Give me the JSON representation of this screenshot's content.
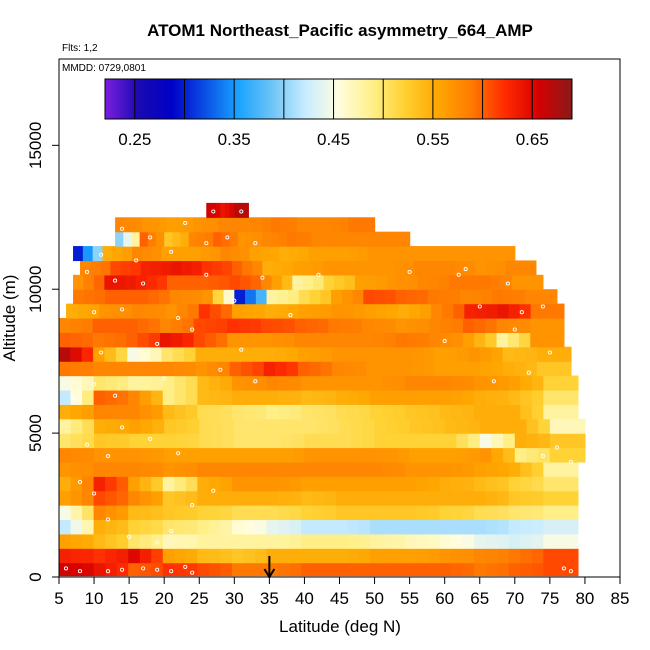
{
  "chart_data": {
    "type": "heatmap",
    "title": "ATOM1 Northeast_Pacific asymmetry_664_AMP",
    "flights_label": "Flts: 1,2",
    "dates_label": "MMDD: 0729,0801",
    "xlabel": "Latitude (deg N)",
    "ylabel": "Altitude (m)",
    "xlim": [
      5,
      85
    ],
    "ylim": [
      0,
      18000
    ],
    "x_ticks": [
      5,
      10,
      15,
      20,
      25,
      30,
      35,
      40,
      45,
      50,
      55,
      60,
      65,
      70,
      75,
      80,
      85
    ],
    "y_ticks": [
      0,
      5000,
      10000,
      15000
    ],
    "colorbar": {
      "range": [
        0.22,
        0.69
      ],
      "tick_values": [
        0.25,
        0.35,
        0.45,
        0.55,
        0.65
      ],
      "tick_labels": [
        "0.25",
        "0.35",
        "0.45",
        "0.55",
        "0.65"
      ],
      "colors": [
        "#7a1fe0",
        "#1a0ab0",
        "#0000c8",
        "#0a4fe6",
        "#1aa3ff",
        "#6cc4f5",
        "#c8ecff",
        "#fffde0",
        "#fff08a",
        "#ffd030",
        "#ffa600",
        "#ff7a00",
        "#ff2a00",
        "#d60000",
        "#8a1a1a"
      ]
    },
    "marker": {
      "latitude": 35,
      "symbol": "arrow"
    },
    "rows": [
      {
        "alt": 300,
        "lat_min": 5,
        "lat_max": 79,
        "values": [
          0.66,
          0.64,
          0.6,
          0.62,
          0.61,
          0.59,
          0.59,
          0.6,
          0.6,
          0.6,
          0.6,
          0.6,
          0.59,
          0.6,
          0.61
        ]
      },
      {
        "alt": 750,
        "lat_min": 5,
        "lat_max": 79,
        "values": [
          0.63,
          0.62,
          0.65,
          0.56,
          0.54,
          0.53,
          0.55,
          0.55,
          0.55,
          0.56,
          0.56,
          0.57,
          0.58,
          0.59,
          0.61
        ]
      },
      {
        "alt": 1250,
        "lat_min": 5,
        "lat_max": 79,
        "values": [
          0.56,
          0.54,
          0.5,
          0.47,
          0.48,
          0.48,
          0.48,
          0.49,
          0.49,
          0.48,
          0.47,
          0.46,
          0.44,
          0.43,
          0.45
        ]
      },
      {
        "alt": 1750,
        "lat_min": 5,
        "lat_max": 79,
        "values": [
          0.42,
          0.55,
          0.52,
          0.5,
          0.49,
          0.46,
          0.44,
          0.42,
          0.42,
          0.41,
          0.41,
          0.41,
          0.41,
          0.42,
          0.43
        ]
      },
      {
        "alt": 2250,
        "lat_min": 5,
        "lat_max": 79,
        "values": [
          0.45,
          0.58,
          0.54,
          0.53,
          0.52,
          0.51,
          0.51,
          0.52,
          0.53,
          0.53,
          0.53,
          0.52,
          0.51,
          0.5,
          0.49
        ]
      },
      {
        "alt": 2750,
        "lat_min": 5,
        "lat_max": 79,
        "values": [
          0.56,
          0.61,
          0.58,
          0.53,
          0.55,
          0.55,
          0.55,
          0.54,
          0.55,
          0.55,
          0.55,
          0.55,
          0.55,
          0.53,
          0.52
        ]
      },
      {
        "alt": 3250,
        "lat_min": 5,
        "lat_max": 79,
        "values": [
          0.55,
          0.63,
          0.56,
          0.48,
          0.55,
          0.57,
          0.57,
          0.56,
          0.56,
          0.56,
          0.56,
          0.55,
          0.54,
          0.52,
          0.5
        ]
      },
      {
        "alt": 3750,
        "lat_min": 5,
        "lat_max": 79,
        "values": [
          0.57,
          0.58,
          0.58,
          0.57,
          0.58,
          0.58,
          0.58,
          0.58,
          0.58,
          0.58,
          0.57,
          0.57,
          0.56,
          0.55,
          0.48
        ]
      },
      {
        "alt": 4250,
        "lat_min": 5,
        "lat_max": 80,
        "values": [
          0.58,
          0.57,
          0.57,
          0.56,
          0.56,
          0.56,
          0.56,
          0.57,
          0.57,
          0.57,
          0.56,
          0.56,
          0.57,
          0.49,
          0.52
        ]
      },
      {
        "alt": 4750,
        "lat_min": 5,
        "lat_max": 80,
        "values": [
          0.5,
          0.53,
          0.52,
          0.52,
          0.51,
          0.5,
          0.5,
          0.51,
          0.51,
          0.52,
          0.52,
          0.52,
          0.45,
          0.55,
          0.53
        ]
      },
      {
        "alt": 5250,
        "lat_min": 5,
        "lat_max": 80,
        "values": [
          0.48,
          0.55,
          0.56,
          0.53,
          0.51,
          0.5,
          0.5,
          0.5,
          0.51,
          0.52,
          0.53,
          0.54,
          0.55,
          0.55,
          0.47
        ]
      },
      {
        "alt": 5750,
        "lat_min": 5,
        "lat_max": 79,
        "values": [
          0.55,
          0.58,
          0.58,
          0.54,
          0.51,
          0.5,
          0.49,
          0.5,
          0.51,
          0.52,
          0.53,
          0.54,
          0.55,
          0.55,
          0.48
        ]
      },
      {
        "alt": 6250,
        "lat_min": 5,
        "lat_max": 79,
        "values": [
          0.42,
          0.6,
          0.58,
          0.49,
          0.54,
          0.55,
          0.55,
          0.54,
          0.55,
          0.56,
          0.56,
          0.56,
          0.55,
          0.54,
          0.5
        ]
      },
      {
        "alt": 6750,
        "lat_min": 5,
        "lat_max": 79,
        "values": [
          0.45,
          0.5,
          0.48,
          0.49,
          0.54,
          0.57,
          0.58,
          0.57,
          0.57,
          0.57,
          0.58,
          0.58,
          0.57,
          0.56,
          0.52
        ]
      },
      {
        "alt": 7250,
        "lat_min": 5,
        "lat_max": 78,
        "values": [
          0.59,
          0.58,
          0.58,
          0.58,
          0.57,
          0.6,
          0.63,
          0.6,
          0.58,
          0.57,
          0.57,
          0.56,
          0.56,
          0.55,
          0.53
        ]
      },
      {
        "alt": 7750,
        "lat_min": 5,
        "lat_max": 78,
        "values": [
          0.67,
          0.56,
          0.45,
          0.5,
          0.55,
          0.55,
          0.55,
          0.56,
          0.57,
          0.57,
          0.57,
          0.56,
          0.57,
          0.54,
          0.55
        ]
      },
      {
        "alt": 8250,
        "lat_min": 5,
        "lat_max": 77,
        "values": [
          0.6,
          0.59,
          0.6,
          0.64,
          0.61,
          0.57,
          0.57,
          0.58,
          0.58,
          0.58,
          0.59,
          0.58,
          0.56,
          0.48,
          0.57
        ]
      },
      {
        "alt": 8750,
        "lat_min": 5,
        "lat_max": 77,
        "values": [
          0.58,
          0.6,
          0.6,
          0.58,
          0.61,
          0.62,
          0.61,
          0.6,
          0.59,
          0.58,
          0.57,
          0.58,
          0.6,
          0.58,
          0.57
        ]
      },
      {
        "alt": 9250,
        "lat_min": 6,
        "lat_max": 77,
        "values": [
          0.55,
          0.57,
          0.58,
          0.57,
          0.62,
          0.56,
          0.55,
          0.56,
          0.57,
          0.56,
          0.55,
          0.58,
          0.63,
          0.64,
          0.59
        ]
      },
      {
        "alt": 9750,
        "lat_min": 7,
        "lat_max": 76,
        "values": [
          0.59,
          0.6,
          0.6,
          0.58,
          0.57,
          0.3,
          0.48,
          0.51,
          0.56,
          0.61,
          0.6,
          0.59,
          0.58,
          0.59,
          0.58
        ]
      },
      {
        "alt": 10250,
        "lat_min": 7,
        "lat_max": 74,
        "values": [
          0.57,
          0.64,
          0.63,
          0.6,
          0.6,
          0.61,
          0.58,
          0.48,
          0.52,
          0.56,
          0.57,
          0.58,
          0.59,
          0.59,
          0.57
        ]
      },
      {
        "alt": 10750,
        "lat_min": 8,
        "lat_max": 73,
        "values": [
          0.58,
          0.61,
          0.63,
          0.64,
          0.62,
          0.6,
          0.55,
          0.56,
          0.57,
          0.57,
          0.57,
          0.58,
          0.58,
          0.57,
          0.58
        ]
      },
      {
        "alt": 11250,
        "lat_min": 7,
        "lat_max": 70,
        "values": [
          0.3,
          0.55,
          0.58,
          0.56,
          0.56,
          0.58,
          0.56,
          0.55,
          0.56,
          0.56,
          0.57,
          0.57,
          0.57,
          0.57,
          0.57
        ]
      },
      {
        "alt": 11750,
        "lat_min": 13,
        "lat_max": 55,
        "values": [
          0.4,
          0.6,
          0.53,
          0.58,
          0.6,
          0.57,
          0.58,
          0.59,
          0.58,
          0.58,
          0.58,
          0.58
        ]
      },
      {
        "alt": 12250,
        "lat_min": 13,
        "lat_max": 50,
        "values": [
          0.58,
          0.57,
          0.56,
          0.57,
          0.58,
          0.58,
          0.59,
          0.58,
          0.58,
          0.59
        ]
      },
      {
        "alt": 12750,
        "lat_min": 26,
        "lat_max": 32,
        "values": [
          0.66,
          0.64,
          0.67
        ]
      }
    ],
    "sample_points": [
      [
        6,
        300
      ],
      [
        8,
        200
      ],
      [
        12,
        200
      ],
      [
        14,
        250
      ],
      [
        17,
        300
      ],
      [
        19,
        250
      ],
      [
        21,
        200
      ],
      [
        23,
        350
      ],
      [
        24,
        150
      ],
      [
        77,
        300
      ],
      [
        78,
        200
      ],
      [
        8,
        3300
      ],
      [
        10,
        2900
      ],
      [
        12,
        2000
      ],
      [
        15,
        1400
      ],
      [
        19,
        1200
      ],
      [
        21,
        1600
      ],
      [
        24,
        2500
      ],
      [
        27,
        3000
      ],
      [
        9,
        4600
      ],
      [
        12,
        4200
      ],
      [
        14,
        5200
      ],
      [
        18,
        4800
      ],
      [
        22,
        4300
      ],
      [
        74,
        4200
      ],
      [
        76,
        4500
      ],
      [
        78,
        4000
      ],
      [
        7,
        6200
      ],
      [
        10,
        6700
      ],
      [
        13,
        6300
      ],
      [
        20,
        6900
      ],
      [
        28,
        7200
      ],
      [
        33,
        6800
      ],
      [
        67,
        6800
      ],
      [
        72,
        7100
      ],
      [
        11,
        7800
      ],
      [
        19,
        8100
      ],
      [
        24,
        8600
      ],
      [
        31,
        7900
      ],
      [
        60,
        8200
      ],
      [
        70,
        8600
      ],
      [
        75,
        7800
      ],
      [
        10,
        9200
      ],
      [
        14,
        9300
      ],
      [
        22,
        9000
      ],
      [
        30,
        9600
      ],
      [
        38,
        9100
      ],
      [
        65,
        9400
      ],
      [
        71,
        9200
      ],
      [
        74,
        9400
      ],
      [
        9,
        10600
      ],
      [
        13,
        10300
      ],
      [
        17,
        10200
      ],
      [
        26,
        10500
      ],
      [
        34,
        10400
      ],
      [
        42,
        10500
      ],
      [
        62,
        10500
      ],
      [
        69,
        10200
      ],
      [
        11,
        11200
      ],
      [
        16,
        11000
      ],
      [
        21,
        11300
      ],
      [
        26,
        11600
      ],
      [
        55,
        10600
      ],
      [
        63,
        10700
      ],
      [
        14,
        12100
      ],
      [
        18,
        11800
      ],
      [
        23,
        12300
      ],
      [
        29,
        11800
      ],
      [
        33,
        11600
      ],
      [
        27,
        12700
      ],
      [
        31,
        12700
      ]
    ]
  }
}
